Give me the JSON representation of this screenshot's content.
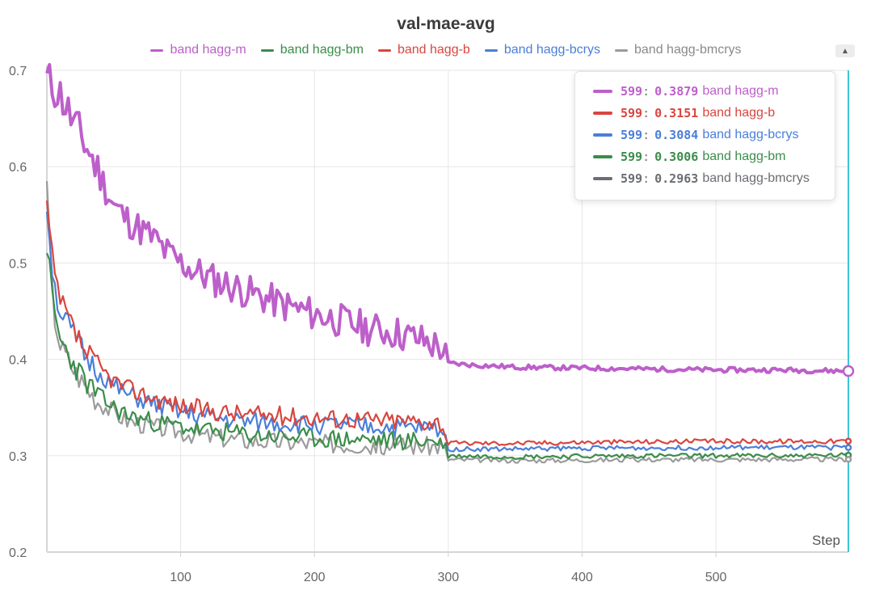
{
  "chart_data": {
    "type": "line",
    "title": "val-mae-avg",
    "xlabel": "Step",
    "xlim": [
      0,
      599
    ],
    "ylim": [
      0.2,
      0.7
    ],
    "x_ticks": [
      "100",
      "200",
      "300",
      "400",
      "500"
    ],
    "y_ticks": [
      "0.2",
      "0.3",
      "0.4",
      "0.5",
      "0.6",
      "0.7"
    ],
    "grid": true,
    "legend_position": "top",
    "hover_step": 599,
    "series": [
      {
        "name": "band hagg-m",
        "color": "#bd5fca",
        "final": 0.3879,
        "points": [
          [
            0,
            0.69
          ],
          [
            10,
            0.675
          ],
          [
            20,
            0.645
          ],
          [
            30,
            0.62
          ],
          [
            40,
            0.59
          ],
          [
            50,
            0.56
          ],
          [
            60,
            0.545
          ],
          [
            70,
            0.535
          ],
          [
            80,
            0.525
          ],
          [
            90,
            0.51
          ],
          [
            100,
            0.5
          ],
          [
            120,
            0.485
          ],
          [
            140,
            0.475
          ],
          [
            160,
            0.465
          ],
          [
            180,
            0.455
          ],
          [
            200,
            0.447
          ],
          [
            220,
            0.44
          ],
          [
            240,
            0.432
          ],
          [
            260,
            0.428
          ],
          [
            280,
            0.42
          ],
          [
            295,
            0.412
          ],
          [
            300,
            0.396
          ],
          [
            320,
            0.394
          ],
          [
            350,
            0.392
          ],
          [
            400,
            0.391
          ],
          [
            450,
            0.39
          ],
          [
            500,
            0.389
          ],
          [
            550,
            0.389
          ],
          [
            599,
            0.3879
          ]
        ]
      },
      {
        "name": "band hagg-bm",
        "color": "#3b8d4a",
        "final": 0.3006,
        "points": [
          [
            0,
            0.52
          ],
          [
            5,
            0.45
          ],
          [
            10,
            0.42
          ],
          [
            20,
            0.395
          ],
          [
            30,
            0.375
          ],
          [
            40,
            0.36
          ],
          [
            50,
            0.35
          ],
          [
            60,
            0.342
          ],
          [
            80,
            0.335
          ],
          [
            100,
            0.33
          ],
          [
            120,
            0.326
          ],
          [
            150,
            0.322
          ],
          [
            200,
            0.318
          ],
          [
            250,
            0.316
          ],
          [
            295,
            0.315
          ],
          [
            300,
            0.3
          ],
          [
            350,
            0.299
          ],
          [
            400,
            0.2995
          ],
          [
            450,
            0.3
          ],
          [
            500,
            0.3
          ],
          [
            550,
            0.3
          ],
          [
            599,
            0.3006
          ]
        ]
      },
      {
        "name": "band hagg-b",
        "color": "#d9463f",
        "final": 0.3151,
        "points": [
          [
            0,
            0.56
          ],
          [
            5,
            0.49
          ],
          [
            10,
            0.46
          ],
          [
            20,
            0.43
          ],
          [
            30,
            0.405
          ],
          [
            40,
            0.39
          ],
          [
            50,
            0.378
          ],
          [
            60,
            0.37
          ],
          [
            80,
            0.36
          ],
          [
            100,
            0.352
          ],
          [
            120,
            0.347
          ],
          [
            150,
            0.343
          ],
          [
            200,
            0.34
          ],
          [
            250,
            0.337
          ],
          [
            295,
            0.335
          ],
          [
            300,
            0.313
          ],
          [
            350,
            0.313
          ],
          [
            400,
            0.314
          ],
          [
            450,
            0.3145
          ],
          [
            500,
            0.315
          ],
          [
            550,
            0.315
          ],
          [
            599,
            0.3151
          ]
        ]
      },
      {
        "name": "band hagg-bcrys",
        "color": "#4a7fd8",
        "final": 0.3084,
        "points": [
          [
            0,
            0.56
          ],
          [
            5,
            0.48
          ],
          [
            10,
            0.45
          ],
          [
            20,
            0.425
          ],
          [
            30,
            0.4
          ],
          [
            40,
            0.385
          ],
          [
            50,
            0.372
          ],
          [
            60,
            0.363
          ],
          [
            80,
            0.353
          ],
          [
            100,
            0.345
          ],
          [
            120,
            0.34
          ],
          [
            150,
            0.335
          ],
          [
            200,
            0.332
          ],
          [
            250,
            0.33
          ],
          [
            295,
            0.328
          ],
          [
            300,
            0.307
          ],
          [
            350,
            0.307
          ],
          [
            400,
            0.308
          ],
          [
            450,
            0.308
          ],
          [
            500,
            0.3085
          ],
          [
            550,
            0.3085
          ],
          [
            599,
            0.3084
          ]
        ]
      },
      {
        "name": "band hagg-bmcrys",
        "color": "#9b9b9b",
        "final": 0.2963,
        "points": [
          [
            0,
            0.575
          ],
          [
            5,
            0.45
          ],
          [
            10,
            0.415
          ],
          [
            20,
            0.39
          ],
          [
            30,
            0.37
          ],
          [
            40,
            0.355
          ],
          [
            50,
            0.345
          ],
          [
            60,
            0.337
          ],
          [
            80,
            0.33
          ],
          [
            100,
            0.325
          ],
          [
            120,
            0.32
          ],
          [
            150,
            0.316
          ],
          [
            200,
            0.313
          ],
          [
            250,
            0.311
          ],
          [
            295,
            0.31
          ],
          [
            300,
            0.296
          ],
          [
            350,
            0.295
          ],
          [
            400,
            0.2955
          ],
          [
            450,
            0.296
          ],
          [
            500,
            0.296
          ],
          [
            550,
            0.2963
          ],
          [
            599,
            0.2963
          ]
        ]
      }
    ]
  },
  "legend": {
    "items": [
      {
        "label": "band hagg-m",
        "color": "#bd5fca"
      },
      {
        "label": "band hagg-bm",
        "color": "#3b8d4a"
      },
      {
        "label": "band hagg-b",
        "color": "#d9463f"
      },
      {
        "label": "band hagg-bcrys",
        "color": "#4a7fd8"
      },
      {
        "label": "band hagg-bmcrys",
        "color": "#9b9b9b"
      }
    ],
    "toggle_icon": "up-down-arrows-icon"
  },
  "tooltip": {
    "rows": [
      {
        "step": "599",
        "value": "0.3879",
        "label": "band hagg-m",
        "color": "#bd5fca"
      },
      {
        "step": "599",
        "value": "0.3151",
        "label": "band hagg-b",
        "color": "#d9463f"
      },
      {
        "step": "599",
        "value": "0.3084",
        "label": "band hagg-bcrys",
        "color": "#4a7fd8"
      },
      {
        "step": "599",
        "value": "0.3006",
        "label": "band hagg-bm",
        "color": "#3b8d4a"
      },
      {
        "step": "599",
        "value": "0.2963",
        "label": "band hagg-bmcrys",
        "color": "#6b6e72"
      }
    ]
  },
  "colors": {
    "cursor_line": "#3ec6d6",
    "grid": "#e6e6e6"
  }
}
